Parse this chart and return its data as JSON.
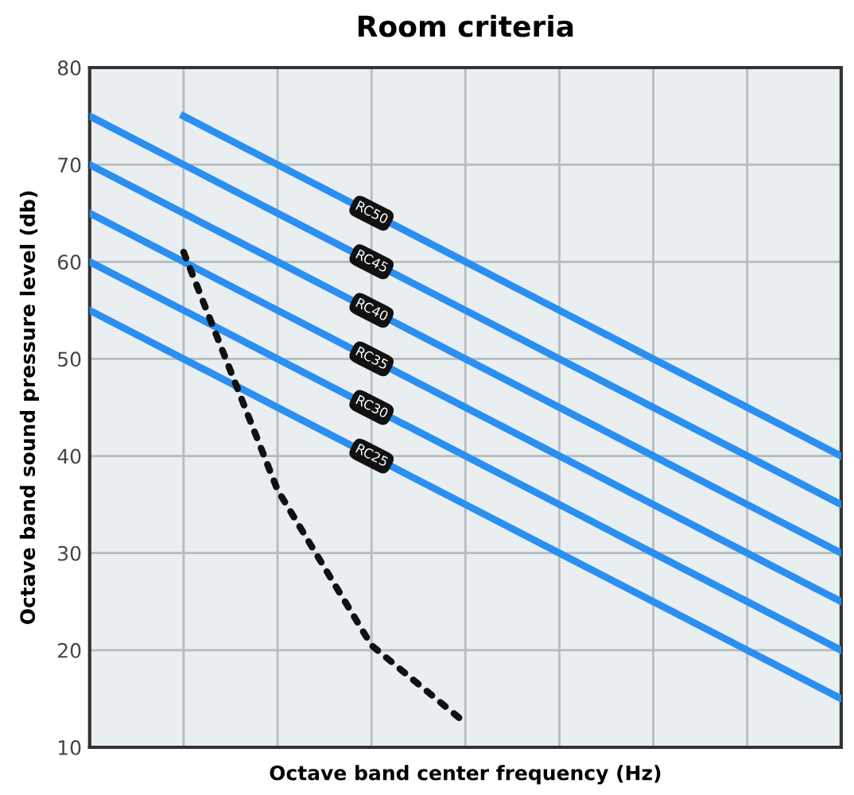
{
  "chart_data": {
    "type": "line",
    "title": "Room criteria",
    "xlabel": "Octave band center frequency (Hz)",
    "ylabel": "Octave band sound pressure level (db)",
    "categories": [
      null,
      null,
      null,
      null,
      null,
      null,
      null,
      null,
      null
    ],
    "series": [
      {
        "name": "RC50",
        "color": "#2a8ff0",
        "values": [
          null,
          75,
          70,
          65,
          60,
          55,
          50,
          45,
          40
        ]
      },
      {
        "name": "RC45",
        "color": "#2a8ff0",
        "values": [
          75,
          70,
          65,
          60,
          55,
          50,
          45,
          40,
          35
        ]
      },
      {
        "name": "RC40",
        "color": "#2a8ff0",
        "values": [
          70,
          65,
          60,
          55,
          50,
          45,
          40,
          35,
          30
        ]
      },
      {
        "name": "RC35",
        "color": "#2a8ff0",
        "values": [
          65,
          60,
          55,
          50,
          45,
          40,
          35,
          30,
          25
        ]
      },
      {
        "name": "RC30",
        "color": "#2a8ff0",
        "values": [
          60,
          55,
          50,
          45,
          40,
          35,
          30,
          25,
          20
        ]
      },
      {
        "name": "RC25",
        "color": "#2a8ff0",
        "values": [
          55,
          50,
          45,
          40,
          35,
          30,
          25,
          20,
          15
        ]
      },
      {
        "color": "#111111",
        "line_style": "dotted",
        "values": [
          null,
          61,
          36.5,
          20.5,
          12.5,
          null,
          null,
          null,
          null
        ]
      }
    ],
    "ylim": [
      10,
      80
    ],
    "yticks": [
      10,
      20,
      30,
      40,
      50,
      60,
      70,
      80
    ],
    "grid": true,
    "legend": false,
    "tick_labels": "y"
  }
}
